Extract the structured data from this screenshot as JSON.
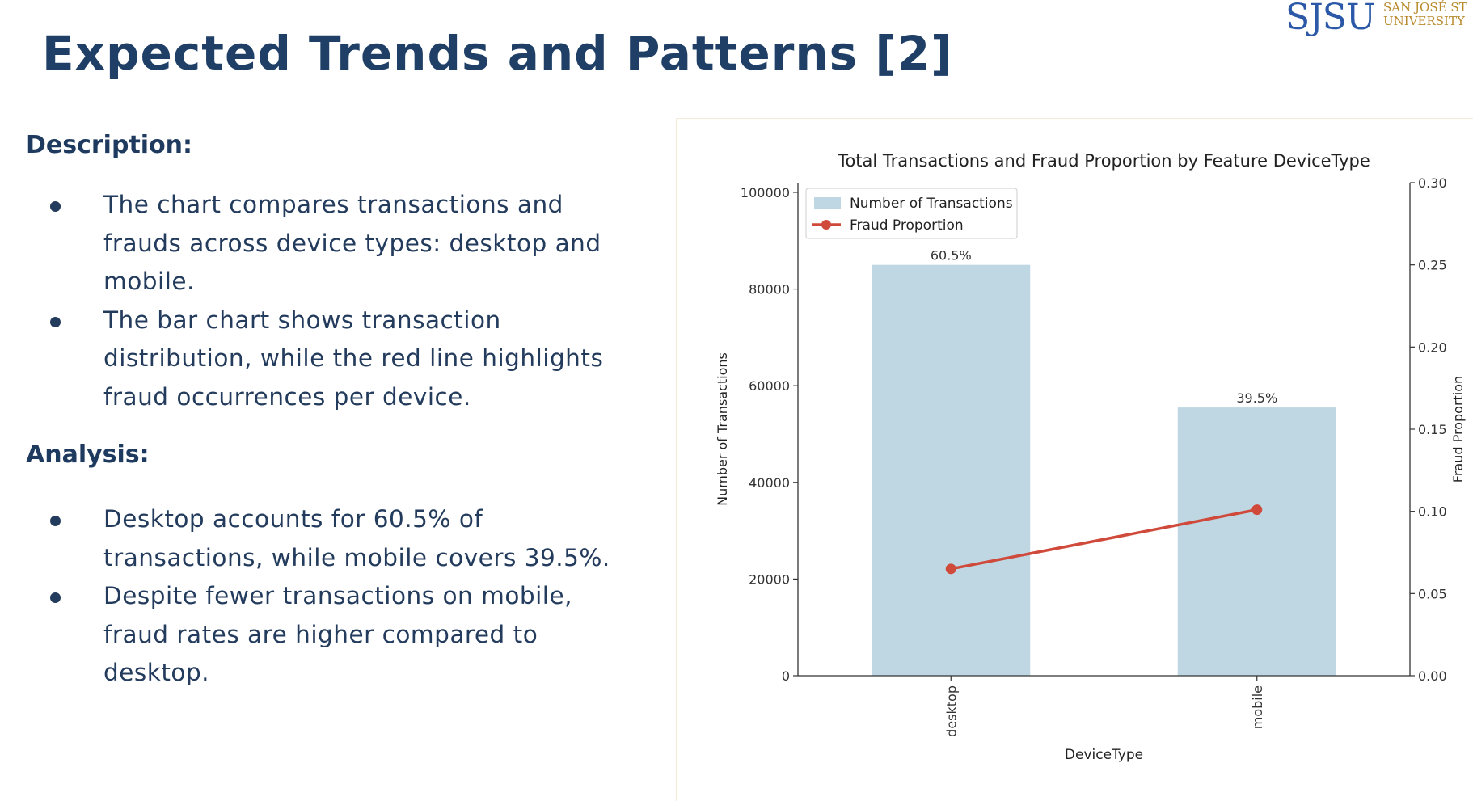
{
  "logo": {
    "mark": "SJSU",
    "line1": "SAN JOSÉ ST",
    "line2": "UNIVERSITY"
  },
  "slide": {
    "title": "Expected Trends and Patterns [2]"
  },
  "description": {
    "heading": "Description:",
    "bullets": [
      "The chart compares transactions and frauds across device types: desktop and mobile.",
      "The bar chart shows transaction distribution, while the red line highlights fraud occurrences per device."
    ]
  },
  "analysis": {
    "heading": "Analysis:",
    "bullets": [
      "Desktop accounts for 60.5% of transactions, while mobile covers 39.5%.",
      "Despite fewer transactions on mobile, fraud rates are higher compared to desktop."
    ]
  },
  "chart_data": {
    "type": "bar",
    "title": "Total Transactions and Fraud Proportion by Feature DeviceType",
    "xlabel": "DeviceType",
    "ylabel": "Number of Transactions",
    "y2label": "Fraud Proportion",
    "categories": [
      "desktop",
      "mobile"
    ],
    "series": [
      {
        "name": "Number of Transactions",
        "type": "bar",
        "axis": "left",
        "values": [
          85000,
          55500
        ],
        "labels": [
          "60.5%",
          "39.5%"
        ],
        "color": "#bfd7e3"
      },
      {
        "name": "Fraud Proportion",
        "type": "line",
        "axis": "right",
        "values": [
          0.065,
          0.101
        ],
        "color": "#d04a3c"
      }
    ],
    "ylim": [
      0,
      102000
    ],
    "y2lim": [
      0,
      0.3
    ],
    "yticks": [
      0,
      20000,
      40000,
      60000,
      80000,
      100000
    ],
    "y2ticks": [
      "0.00",
      "0.05",
      "0.10",
      "0.15",
      "0.20",
      "0.25",
      "0.30"
    ],
    "legend": "top-left",
    "grid": false
  }
}
